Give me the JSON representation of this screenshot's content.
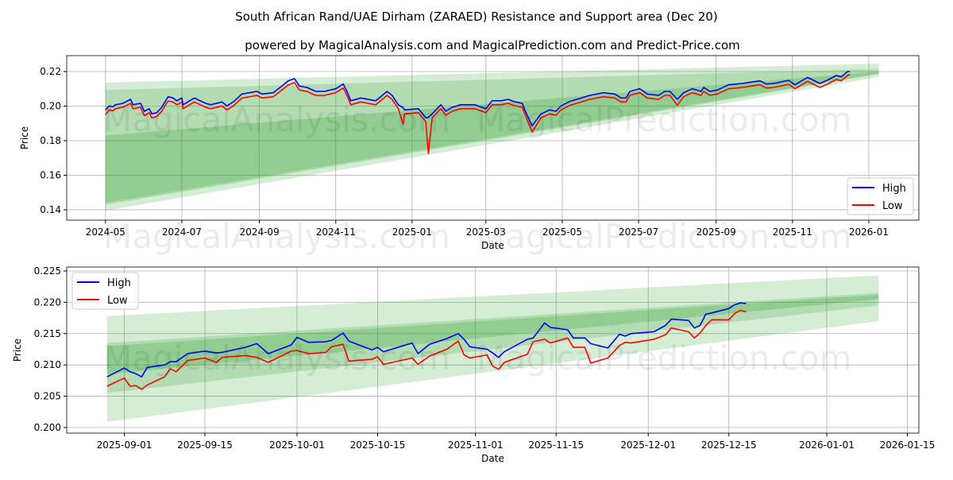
{
  "title": "South African Rand/UAE Dirham (ZARAED) Resistance and Support area (Dec 20)",
  "subtitle": "powered by MagicalAnalysis.com and MagicalPrediction.com and Predict-Price.com",
  "watermarks": [
    "MagicalAnalysis.com",
    "MagicalPrediction.com"
  ],
  "colors": {
    "high": "#0000ff",
    "low": "#ff0000",
    "band": "#2ca02c"
  },
  "chart_data": [
    {
      "type": "line",
      "xlabel": "Date",
      "ylabel": "Price",
      "xlim": [
        "2024-03-31",
        "2026-02-10"
      ],
      "ylim": [
        0.134,
        0.2292
      ],
      "grid": true,
      "legend": {
        "placement": "lower-right",
        "entries": [
          "High",
          "Low"
        ]
      },
      "yticks": [
        0.14,
        0.16,
        0.18,
        0.2,
        0.22
      ],
      "ytick_labels": [
        "0.14",
        "0.16",
        "0.18",
        "0.20",
        "0.22"
      ],
      "xticks": [
        "2024-05-01",
        "2024-07-01",
        "2024-09-01",
        "2024-11-01",
        "2025-01-01",
        "2025-03-01",
        "2025-05-01",
        "2025-07-01",
        "2025-09-01",
        "2025-11-01",
        "2026-01-01"
      ],
      "xtick_labels": [
        "2024-05",
        "2024-07",
        "2024-09",
        "2024-11",
        "2025-01",
        "2025-03",
        "2025-05",
        "2025-07",
        "2025-09",
        "2025-11",
        "2026-01"
      ],
      "bands": [
        {
          "start": "2024-05-01",
          "end": "2026-01-09",
          "upper": [
            0.2136,
            0.2246
          ],
          "lower": [
            0.1395,
            0.2169
          ],
          "opacity": 0.2
        },
        {
          "start": "2024-05-01",
          "end": "2026-01-09",
          "upper": [
            0.2093,
            0.2215
          ],
          "lower": [
            0.1441,
            0.219
          ],
          "opacity": 0.2
        },
        {
          "start": "2024-05-01",
          "end": "2026-01-09",
          "upper": [
            0.183,
            0.22
          ],
          "lower": [
            0.143,
            0.2185
          ],
          "opacity": 0.25
        }
      ],
      "series": {
        "x": [
          "2024-05-01",
          "2024-05-04",
          "2024-05-07",
          "2024-05-09",
          "2024-05-15",
          "2024-05-21",
          "2024-05-23",
          "2024-05-29",
          "2024-06-01",
          "2024-06-05",
          "2024-06-07",
          "2024-06-11",
          "2024-06-15",
          "2024-06-20",
          "2024-06-24",
          "2024-06-27",
          "2024-07-01",
          "2024-07-02",
          "2024-07-11",
          "2024-07-20",
          "2024-07-24",
          "2024-08-02",
          "2024-08-06",
          "2024-08-11",
          "2024-08-18",
          "2024-08-30",
          "2024-09-03",
          "2024-09-12",
          "2024-09-19",
          "2024-09-24",
          "2024-09-29",
          "2024-10-03",
          "2024-10-09",
          "2024-10-16",
          "2024-10-23",
          "2024-11-01",
          "2024-11-07",
          "2024-11-10",
          "2024-11-13",
          "2024-11-21",
          "2024-12-03",
          "2024-12-12",
          "2024-12-16",
          "2024-12-21",
          "2024-12-25",
          "2024-12-26",
          "2025-01-06",
          "2025-01-12",
          "2025-01-14",
          "2025-01-17",
          "2025-01-24",
          "2025-01-28",
          "2025-02-02",
          "2025-02-09",
          "2025-02-20",
          "2025-03-01",
          "2025-03-06",
          "2025-03-13",
          "2025-03-19",
          "2025-03-23",
          "2025-03-30",
          "2025-04-02",
          "2025-04-07",
          "2025-04-14",
          "2025-04-21",
          "2025-04-26",
          "2025-04-30",
          "2025-05-07",
          "2025-05-14",
          "2025-05-23",
          "2025-06-03",
          "2025-06-12",
          "2025-06-17",
          "2025-06-21",
          "2025-06-24",
          "2025-07-02",
          "2025-07-08",
          "2025-07-17",
          "2025-07-22",
          "2025-07-26",
          "2025-08-01",
          "2025-08-06",
          "2025-08-13",
          "2025-08-20",
          "2025-08-22",
          "2025-08-27",
          "2025-09-02",
          "2025-09-11",
          "2025-09-22",
          "2025-09-29",
          "2025-10-06",
          "2025-10-11",
          "2025-10-17",
          "2025-10-29",
          "2025-11-03",
          "2025-11-13",
          "2025-11-23",
          "2025-11-30",
          "2025-12-06",
          "2025-12-10",
          "2025-12-15",
          "2025-12-17"
        ],
        "high": [
          0.1978,
          0.2001,
          0.1996,
          0.2008,
          0.2016,
          0.2039,
          0.2008,
          0.2016,
          0.197,
          0.1985,
          0.1955,
          0.1962,
          0.1993,
          0.2054,
          0.2047,
          0.2031,
          0.2047,
          0.2008,
          0.2047,
          0.2016,
          0.2008,
          0.2024,
          0.2001,
          0.2024,
          0.207,
          0.2085,
          0.207,
          0.2077,
          0.2116,
          0.2146,
          0.2159,
          0.2116,
          0.2108,
          0.2085,
          0.2085,
          0.21,
          0.2128,
          0.2085,
          0.2031,
          0.2047,
          0.2031,
          0.2085,
          0.2062,
          0.2008,
          0.199,
          0.1978,
          0.1985,
          0.1932,
          0.1935,
          0.1955,
          0.2008,
          0.197,
          0.1993,
          0.2008,
          0.2008,
          0.1985,
          0.2031,
          0.2031,
          0.2039,
          0.2027,
          0.2016,
          0.1962,
          0.1886,
          0.1955,
          0.1978,
          0.197,
          0.2001,
          0.2027,
          0.2042,
          0.2062,
          0.2077,
          0.207,
          0.2047,
          0.2047,
          0.2085,
          0.21,
          0.207,
          0.2062,
          0.2085,
          0.2085,
          0.2039,
          0.2077,
          0.21,
          0.2085,
          0.2108,
          0.2085,
          0.2093,
          0.2123,
          0.2131,
          0.2139,
          0.2146,
          0.2128,
          0.2131,
          0.2149,
          0.2123,
          0.2166,
          0.2131,
          0.2154,
          0.2177,
          0.2169,
          0.22,
          0.22
        ],
        "low": [
          0.195,
          0.1978,
          0.1973,
          0.1985,
          0.1994,
          0.2015,
          0.1985,
          0.1993,
          0.1945,
          0.1962,
          0.1932,
          0.194,
          0.197,
          0.203,
          0.2024,
          0.2008,
          0.2023,
          0.1985,
          0.2024,
          0.1993,
          0.1985,
          0.2001,
          0.1978,
          0.2001,
          0.2046,
          0.2062,
          0.2047,
          0.2054,
          0.2093,
          0.2122,
          0.2136,
          0.2093,
          0.2085,
          0.2062,
          0.2062,
          0.2077,
          0.2105,
          0.2062,
          0.2008,
          0.2024,
          0.2008,
          0.2062,
          0.2039,
          0.1985,
          0.1894,
          0.1955,
          0.1962,
          0.191,
          0.1725,
          0.1932,
          0.1985,
          0.1947,
          0.197,
          0.1985,
          0.1985,
          0.1962,
          0.2008,
          0.2008,
          0.2016,
          0.2004,
          0.1993,
          0.1939,
          0.185,
          0.1932,
          0.1955,
          0.1947,
          0.1978,
          0.2004,
          0.2019,
          0.2039,
          0.2054,
          0.2047,
          0.2024,
          0.2024,
          0.2062,
          0.2077,
          0.2047,
          0.2039,
          0.2062,
          0.2062,
          0.2005,
          0.2054,
          0.2077,
          0.2062,
          0.2085,
          0.2062,
          0.207,
          0.21,
          0.2108,
          0.2116,
          0.2123,
          0.2105,
          0.2108,
          0.2126,
          0.21,
          0.2143,
          0.2108,
          0.2131,
          0.2154,
          0.2146,
          0.2177,
          0.2185
        ]
      }
    },
    {
      "type": "line",
      "xlabel": "Date",
      "ylabel": "Price",
      "xlim": [
        "2025-08-22",
        "2026-01-17"
      ],
      "ylim": [
        0.19911,
        0.22563
      ],
      "grid": true,
      "legend": {
        "placement": "upper-left",
        "entries": [
          "High",
          "Low"
        ]
      },
      "yticks": [
        0.2,
        0.205,
        0.21,
        0.215,
        0.22,
        0.225
      ],
      "ytick_labels": [
        "0.200",
        "0.205",
        "0.210",
        "0.215",
        "0.220",
        "0.225"
      ],
      "xticks": [
        "2025-09-01",
        "2025-09-15",
        "2025-10-01",
        "2025-10-15",
        "2025-11-01",
        "2025-11-15",
        "2025-12-01",
        "2025-12-15",
        "2026-01-01",
        "2026-01-15"
      ],
      "xtick_labels": [
        "2025-09-01",
        "2025-09-15",
        "2025-10-01",
        "2025-10-15",
        "2025-11-01",
        "2025-11-15",
        "2025-12-01",
        "2025-12-15",
        "2026-01-01",
        "2026-01-15"
      ],
      "bands": [
        {
          "start": "2025-08-29",
          "end": "2026-01-10",
          "upper": [
            0.2178,
            0.2243
          ],
          "lower": [
            0.2009,
            0.217
          ],
          "opacity": 0.2
        },
        {
          "start": "2025-08-29",
          "end": "2026-01-10",
          "upper": [
            0.2135,
            0.2215
          ],
          "lower": [
            0.2055,
            0.2195
          ],
          "opacity": 0.2
        },
        {
          "start": "2025-08-29",
          "end": "2026-01-10",
          "upper": [
            0.213,
            0.2212
          ],
          "lower": [
            0.2085,
            0.2205
          ],
          "opacity": 0.25
        }
      ],
      "series": {
        "x": [
          "2025-08-29",
          "2025-09-01",
          "2025-09-02",
          "2025-09-03",
          "2025-09-04",
          "2025-09-05",
          "2025-09-08",
          "2025-09-09",
          "2025-09-10",
          "2025-09-12",
          "2025-09-15",
          "2025-09-17",
          "2025-09-18",
          "2025-09-22",
          "2025-09-24",
          "2025-09-26",
          "2025-09-30",
          "2025-10-01",
          "2025-10-03",
          "2025-10-06",
          "2025-10-07",
          "2025-10-09",
          "2025-10-10",
          "2025-10-14",
          "2025-10-15",
          "2025-10-16",
          "2025-10-21",
          "2025-10-22",
          "2025-10-24",
          "2025-10-27",
          "2025-10-29",
          "2025-10-30",
          "2025-10-31",
          "2025-11-03",
          "2025-11-04",
          "2025-11-05",
          "2025-11-06",
          "2025-11-10",
          "2025-11-11",
          "2025-11-13",
          "2025-11-14",
          "2025-11-17",
          "2025-11-18",
          "2025-11-20",
          "2025-11-21",
          "2025-11-24",
          "2025-11-26",
          "2025-11-27",
          "2025-11-28",
          "2025-12-02",
          "2025-12-04",
          "2025-12-05",
          "2025-12-08",
          "2025-12-09",
          "2025-12-10",
          "2025-12-11",
          "2025-12-12",
          "2025-12-15",
          "2025-12-16",
          "2025-12-17",
          "2025-12-18"
        ],
        "high": [
          0.2081,
          0.2095,
          0.2089,
          0.2086,
          0.2081,
          0.2096,
          0.21,
          0.2105,
          0.2105,
          0.2118,
          0.2122,
          0.2119,
          0.212,
          0.2128,
          0.2134,
          0.2118,
          0.2132,
          0.2144,
          0.2136,
          0.2137,
          0.2139,
          0.2151,
          0.2138,
          0.2124,
          0.2128,
          0.2121,
          0.2135,
          0.2118,
          0.2133,
          0.2142,
          0.215,
          0.2141,
          0.2129,
          0.2125,
          0.2119,
          0.2112,
          0.2121,
          0.2141,
          0.2143,
          0.2167,
          0.216,
          0.2156,
          0.2143,
          0.2143,
          0.2134,
          0.2127,
          0.2149,
          0.2146,
          0.215,
          0.2153,
          0.2163,
          0.2173,
          0.2171,
          0.2159,
          0.2163,
          0.2181,
          0.2183,
          0.219,
          0.2196,
          0.2199,
          0.2198
        ],
        "low": [
          0.2066,
          0.2079,
          0.2066,
          0.2067,
          0.2061,
          0.2068,
          0.2081,
          0.2094,
          0.2089,
          0.2107,
          0.2111,
          0.2104,
          0.2112,
          0.2115,
          0.2112,
          0.2104,
          0.2122,
          0.2123,
          0.2118,
          0.212,
          0.2129,
          0.2133,
          0.2106,
          0.2109,
          0.2113,
          0.2101,
          0.2111,
          0.2101,
          0.2114,
          0.2125,
          0.2138,
          0.2116,
          0.2111,
          0.2116,
          0.2098,
          0.2093,
          0.2104,
          0.2117,
          0.2137,
          0.2141,
          0.2135,
          0.2143,
          0.2128,
          0.2128,
          0.2103,
          0.2111,
          0.2131,
          0.2136,
          0.2135,
          0.2141,
          0.2148,
          0.2159,
          0.2153,
          0.2143,
          0.2151,
          0.2163,
          0.2172,
          0.2172,
          0.2182,
          0.2187,
          0.2185
        ]
      }
    }
  ]
}
